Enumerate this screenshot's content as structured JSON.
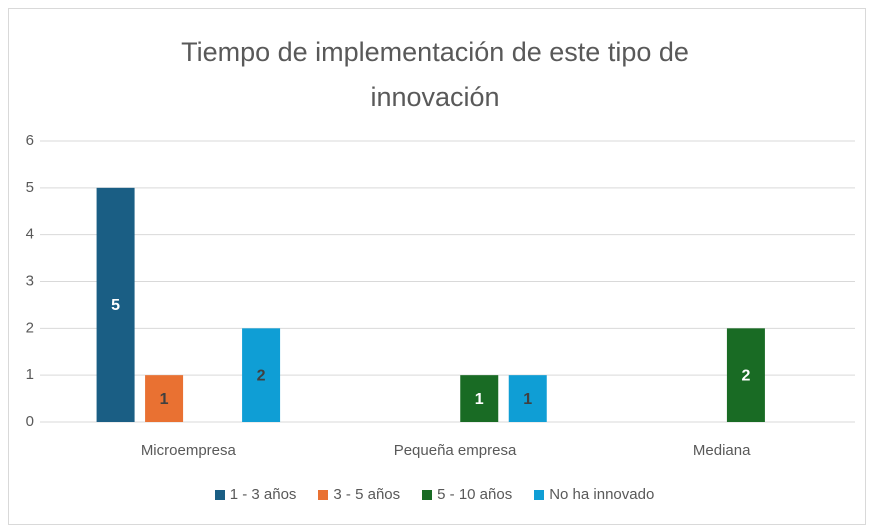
{
  "chart_data": {
    "type": "bar",
    "title": "Tiempo de implementación de este tipo de innovación",
    "categories": [
      "Microempresa",
      "Pequeña empresa",
      "Mediana"
    ],
    "series": [
      {
        "name": "1 - 3 años",
        "color": "#1a5e84",
        "values": [
          5,
          null,
          null
        ]
      },
      {
        "name": "3 - 5 años",
        "color": "#e97132",
        "values": [
          1,
          null,
          null
        ]
      },
      {
        "name": "5 - 10 años",
        "color": "#196b24",
        "values": [
          null,
          1,
          2
        ]
      },
      {
        "name": "No ha innovado",
        "color": "#0f9ed5",
        "values": [
          2,
          1,
          null
        ]
      }
    ],
    "ylim": [
      0,
      6
    ],
    "yticks": [
      0,
      1,
      2,
      3,
      4,
      5,
      6
    ],
    "grid": true,
    "legend": "bottom"
  }
}
